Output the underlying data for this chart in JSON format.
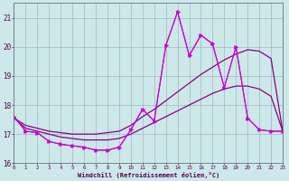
{
  "xlabel": "Windchill (Refroidissement éolien,°C)",
  "bg_color": "#cce8e8",
  "grid_color": "#99aabb",
  "line_color": "#cc00cc",
  "line_color2": "#880088",
  "xmin": 0,
  "xmax": 23,
  "ymin": 16,
  "ymax": 21.5,
  "yticks": [
    16,
    17,
    18,
    19,
    20,
    21
  ],
  "xticks": [
    0,
    1,
    2,
    3,
    4,
    5,
    6,
    7,
    8,
    9,
    10,
    11,
    12,
    13,
    14,
    15,
    16,
    17,
    18,
    19,
    20,
    21,
    22,
    23
  ],
  "series_zigzag": {
    "x": [
      0,
      1,
      2,
      3,
      4,
      5,
      6,
      7,
      8,
      9,
      10,
      11,
      12,
      13,
      14,
      15,
      16,
      17,
      18,
      19,
      20,
      21,
      22,
      23
    ],
    "y": [
      17.6,
      17.1,
      17.05,
      16.75,
      16.65,
      16.6,
      16.55,
      16.45,
      16.45,
      16.55,
      17.15,
      17.85,
      17.45,
      20.05,
      21.2,
      19.7,
      20.4,
      20.1,
      18.6,
      20.0,
      17.55,
      17.15,
      17.1,
      17.1
    ]
  },
  "series_arrow": {
    "x": [
      0,
      1,
      2,
      3,
      4,
      5,
      6,
      7,
      8,
      9,
      10,
      11,
      12,
      13,
      14,
      15,
      16,
      17,
      18,
      19,
      20,
      21,
      22,
      23
    ],
    "y": [
      17.6,
      17.1,
      17.05,
      16.75,
      16.65,
      16.6,
      16.55,
      16.45,
      16.45,
      16.55,
      17.15,
      17.85,
      17.45,
      20.05,
      21.2,
      19.7,
      20.4,
      20.1,
      18.6,
      20.0,
      17.55,
      17.15,
      17.1,
      17.1
    ]
  },
  "series_smooth1": {
    "x": [
      0,
      1,
      2,
      3,
      4,
      5,
      6,
      7,
      8,
      9,
      10,
      11,
      12,
      13,
      14,
      15,
      16,
      17,
      18,
      19,
      20,
      21,
      22,
      23
    ],
    "y": [
      17.55,
      17.3,
      17.2,
      17.1,
      17.05,
      17.0,
      17.0,
      17.0,
      17.05,
      17.1,
      17.3,
      17.6,
      17.85,
      18.15,
      18.45,
      18.75,
      19.05,
      19.3,
      19.55,
      19.75,
      19.9,
      19.85,
      19.6,
      17.1
    ]
  },
  "series_smooth2": {
    "x": [
      0,
      1,
      2,
      3,
      4,
      5,
      6,
      7,
      8,
      9,
      10,
      11,
      12,
      13,
      14,
      15,
      16,
      17,
      18,
      19,
      20,
      21,
      22,
      23
    ],
    "y": [
      17.55,
      17.2,
      17.1,
      17.0,
      16.9,
      16.85,
      16.8,
      16.8,
      16.8,
      16.85,
      17.0,
      17.2,
      17.4,
      17.6,
      17.8,
      18.0,
      18.2,
      18.4,
      18.55,
      18.65,
      18.65,
      18.55,
      18.3,
      17.1
    ]
  }
}
